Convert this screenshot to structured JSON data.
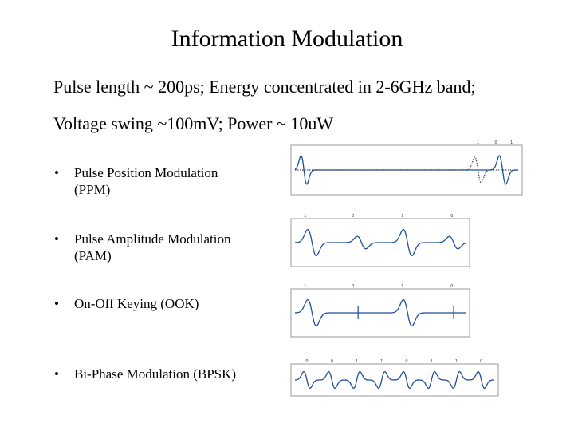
{
  "title": "Information Modulation",
  "lines": [
    "Pulse length ~ 200ps; Energy concentrated in 2-6GHz band;",
    "Voltage swing ~100mV; Power ~ 10uW"
  ],
  "bullets": [
    {
      "symbol": "•",
      "text": "Pulse Position Modulation\n(PPM)"
    },
    {
      "symbol": "•",
      "text": "Pulse Amplitude Modulation\n(PAM)"
    },
    {
      "symbol": "•",
      "text": "On-Off Keying (OOK)"
    },
    {
      "symbol": "•",
      "text": "Bi-Phase Modulation (BPSK)"
    }
  ],
  "colors": {
    "waveform": "#1f4e9a",
    "frame": "#9a9a9a"
  },
  "plots": [
    {
      "name": "ppm",
      "bits": [
        "1",
        "0",
        "1"
      ]
    },
    {
      "name": "pam",
      "bits": [
        "1",
        "0",
        "1",
        "0"
      ]
    },
    {
      "name": "ook",
      "bits": [
        "1",
        "0",
        "1",
        "0"
      ]
    },
    {
      "name": "bpsk",
      "bits": [
        "0",
        "0",
        "1",
        "1",
        "0",
        "1",
        "1",
        "0"
      ]
    }
  ]
}
